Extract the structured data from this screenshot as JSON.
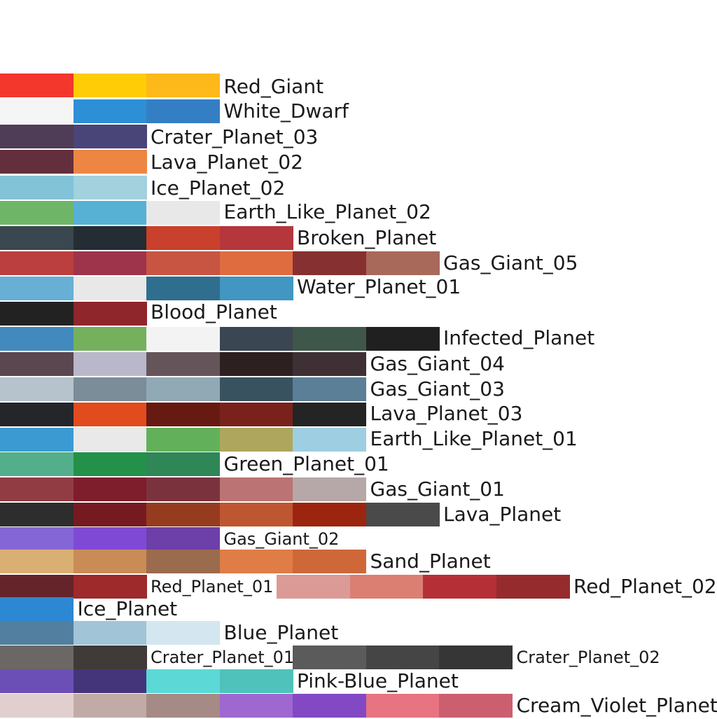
{
  "palettes": [
    {
      "name": "Red_Giant",
      "colors": [
        "#f3372c",
        "#ffcc06",
        "#fdb81a"
      ]
    },
    {
      "name": "White_Dwarf",
      "colors": [
        "#f5f5f5",
        "#2d8fd5",
        "#347fc3"
      ]
    },
    {
      "name": "Crater_Planet_03",
      "colors": [
        "#4f3c57",
        "#4a4579"
      ]
    },
    {
      "name": "Lava_Planet_02",
      "colors": [
        "#642f3d",
        "#ed8642"
      ]
    },
    {
      "name": "Ice_Planet_02",
      "colors": [
        "#82c3d8",
        "#a3d1de"
      ]
    },
    {
      "name": "Earth_Like_Planet_02",
      "colors": [
        "#6fb567",
        "#56b1d5",
        "#e8e8e8"
      ]
    },
    {
      "name": "Broken_Planet",
      "colors": [
        "#3a474e",
        "#232d33",
        "#c9402c",
        "#b5373b"
      ]
    },
    {
      "name": "Gas_Giant_05",
      "colors": [
        "#bb3f3e",
        "#9e344b",
        "#c75542",
        "#df6c3f",
        "#873031",
        "#a8685a"
      ]
    },
    {
      "name": "Water_Planet_01",
      "colors": [
        "#68afd5",
        "#e8e8e8",
        "#2f6e8e",
        "#4196c2"
      ]
    },
    {
      "name": "Blood_Planet",
      "colors": [
        "#222222",
        "#8f262b"
      ]
    },
    {
      "name": "Infected_Planet",
      "colors": [
        "#428abd",
        "#75b05d",
        "#f3f3f3",
        "#3a4652",
        "#3f574b",
        "#202020"
      ]
    },
    {
      "name": "Gas_Giant_04",
      "colors": [
        "#5a4750",
        "#b8b8ca",
        "#655459",
        "#2c2021",
        "#3e3034"
      ]
    },
    {
      "name": "Gas_Giant_03",
      "colors": [
        "#b6c2cc",
        "#7a8d98",
        "#91a8b5",
        "#385260",
        "#5c7f98"
      ]
    },
    {
      "name": "Lava_Planet_03",
      "colors": [
        "#25252c",
        "#e24b1e",
        "#671a12",
        "#79221c",
        "#242424"
      ]
    },
    {
      "name": "Earth_Like_Planet_01",
      "colors": [
        "#3c9ad3",
        "#e9e9e9",
        "#62b15a",
        "#aea65d",
        "#9ecee2"
      ]
    },
    {
      "name": "Green_Planet_01",
      "colors": [
        "#53af8b",
        "#23914a",
        "#2f8656"
      ]
    },
    {
      "name": "Gas_Giant_01",
      "colors": [
        "#913c43",
        "#7e1d2c",
        "#7a333d",
        "#bb7373",
        "#b6a8a8"
      ]
    },
    {
      "name": "Lava_Planet",
      "colors": [
        "#2d2d2d",
        "#761a21",
        "#963c1e",
        "#bf5632",
        "#9c250f",
        "#4a4a4a"
      ]
    },
    {
      "name": "Gas_Giant_02",
      "colors": [
        "#8566d6",
        "#8049d5",
        "#6c3fa9"
      ]
    },
    {
      "name": "Sand_Planet",
      "colors": [
        "#d9af73",
        "#c98c56",
        "#9b6b4e",
        "#e07c45",
        "#cf6839"
      ]
    },
    {
      "name": "Red_Planet_01",
      "colors": [
        "#64242a",
        "#9e2a2c"
      ]
    },
    {
      "name": "Red_Planet_02",
      "colors": [
        "#dc9a97",
        "#db7f73",
        "#b53036",
        "#962b2e"
      ]
    },
    {
      "name": "Ice_Planet",
      "colors": [
        "#2c88d2"
      ]
    },
    {
      "name": "Blue_Planet",
      "colors": [
        "#527f9f",
        "#a1c4d6",
        "#d4e6ef"
      ]
    },
    {
      "name": "Crater_Planet_01",
      "colors": [
        "#6b6764",
        "#403b38"
      ]
    },
    {
      "name": "Crater_Planet_02",
      "colors": [
        "#5b5b5b",
        "#454545",
        "#363636"
      ]
    },
    {
      "name": "Pink-Blue_Planet",
      "colors": [
        "#6b4fb6",
        "#44357a",
        "#5cd9d6",
        "#4ec2bb"
      ]
    },
    {
      "name": "Cream_Violet_Planet",
      "colors": [
        "#e1cfcf",
        "#c1aba6",
        "#a58a85",
        "#9f68d1",
        "#8349c5",
        "#e77480",
        "#cb5f70"
      ]
    }
  ]
}
